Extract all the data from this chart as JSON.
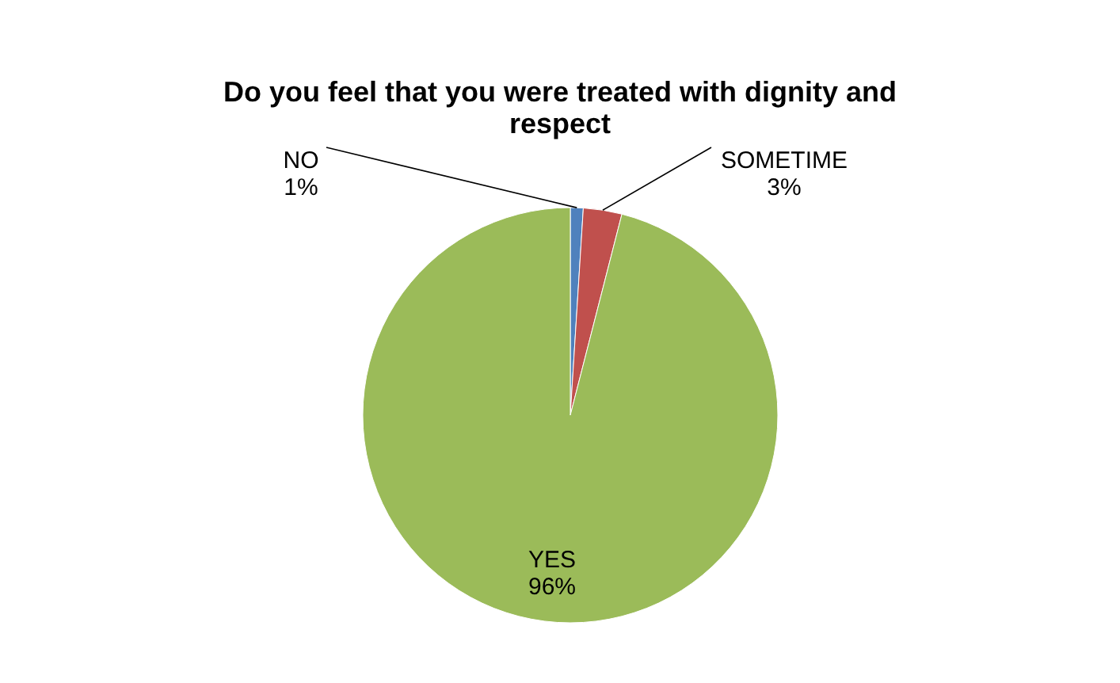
{
  "chart_data": {
    "type": "pie",
    "title": "Do you feel that you were treated with dignity and respect",
    "categories": [
      "NO",
      "SOMETIME",
      "YES"
    ],
    "values": [
      1,
      3,
      96
    ],
    "value_labels": [
      "1%",
      "3%",
      "96%"
    ],
    "colors": [
      "#4f81bd",
      "#c0504d",
      "#9bbb59"
    ],
    "legend": false
  }
}
